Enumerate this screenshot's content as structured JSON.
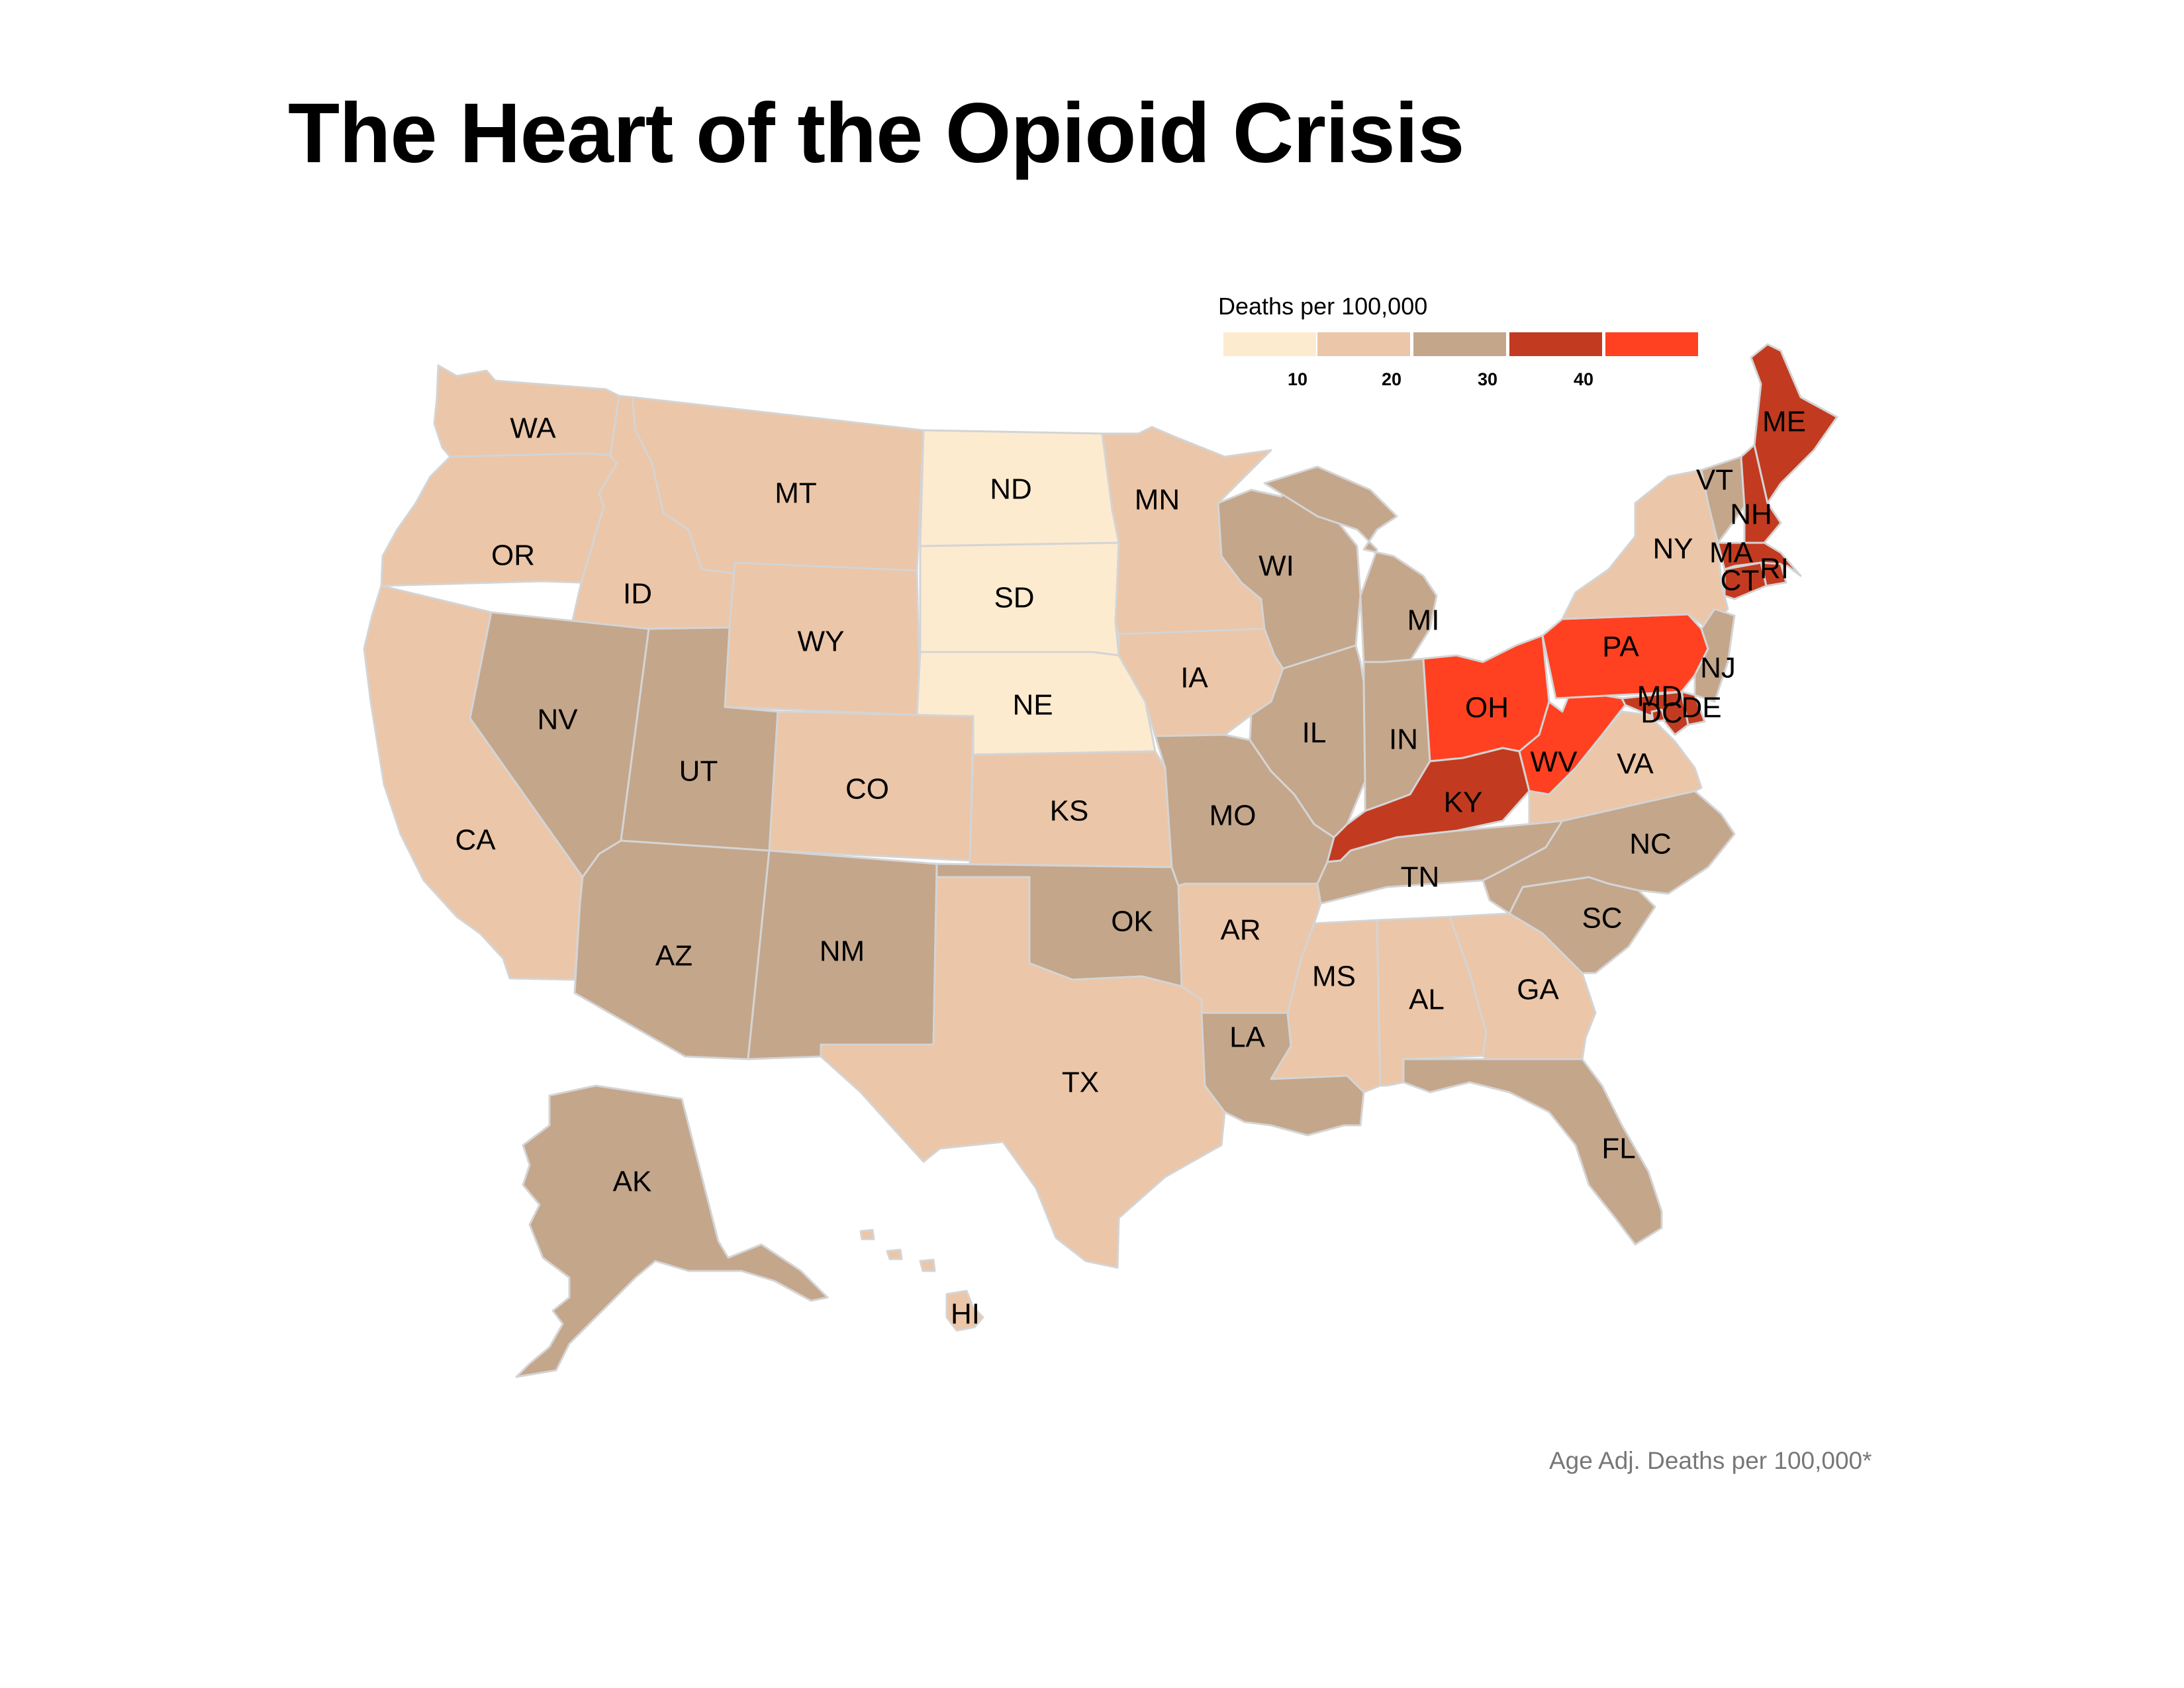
{
  "title": "The Heart of the Opioid Crisis",
  "caption": "Age Adj. Deaths per 100,000*",
  "legend": {
    "title": "Deaths per 100,000",
    "bins": [
      {
        "color": "#fdebd0"
      },
      {
        "color": "#ebc6a8"
      },
      {
        "color": "#c4a68b"
      },
      {
        "color": "#c23b20"
      },
      {
        "color": "#ff4121"
      }
    ],
    "ticks": [
      "10",
      "20",
      "30",
      "40"
    ]
  },
  "chart_data": {
    "type": "choropleth",
    "title": "The Heart of the Opioid Crisis",
    "legend_title": "Deaths per 100,000",
    "bins": [
      {
        "range": [
          0,
          10
        ],
        "color": "#fdebd0"
      },
      {
        "range": [
          10,
          20
        ],
        "color": "#ebc6a8"
      },
      {
        "range": [
          20,
          30
        ],
        "color": "#c4a68b"
      },
      {
        "range": [
          30,
          40
        ],
        "color": "#c23b20"
      },
      {
        "range": [
          40,
          50
        ],
        "color": "#ff4121"
      }
    ],
    "states": [
      {
        "abbr": "WA",
        "bin": 1
      },
      {
        "abbr": "OR",
        "bin": 1
      },
      {
        "abbr": "CA",
        "bin": 1
      },
      {
        "abbr": "ID",
        "bin": 1
      },
      {
        "abbr": "MT",
        "bin": 1
      },
      {
        "abbr": "WY",
        "bin": 1
      },
      {
        "abbr": "NV",
        "bin": 2
      },
      {
        "abbr": "UT",
        "bin": 2
      },
      {
        "abbr": "CO",
        "bin": 1
      },
      {
        "abbr": "AZ",
        "bin": 2
      },
      {
        "abbr": "NM",
        "bin": 2
      },
      {
        "abbr": "ND",
        "bin": 0
      },
      {
        "abbr": "SD",
        "bin": 0
      },
      {
        "abbr": "NE",
        "bin": 0
      },
      {
        "abbr": "KS",
        "bin": 1
      },
      {
        "abbr": "OK",
        "bin": 2
      },
      {
        "abbr": "TX",
        "bin": 1
      },
      {
        "abbr": "MN",
        "bin": 1
      },
      {
        "abbr": "IA",
        "bin": 1
      },
      {
        "abbr": "MO",
        "bin": 2
      },
      {
        "abbr": "AR",
        "bin": 1
      },
      {
        "abbr": "LA",
        "bin": 2
      },
      {
        "abbr": "WI",
        "bin": 2
      },
      {
        "abbr": "IL",
        "bin": 2
      },
      {
        "abbr": "MI",
        "bin": 2
      },
      {
        "abbr": "IN",
        "bin": 2
      },
      {
        "abbr": "OH",
        "bin": 4
      },
      {
        "abbr": "KY",
        "bin": 3
      },
      {
        "abbr": "TN",
        "bin": 2
      },
      {
        "abbr": "MS",
        "bin": 1
      },
      {
        "abbr": "AL",
        "bin": 1
      },
      {
        "abbr": "GA",
        "bin": 1
      },
      {
        "abbr": "FL",
        "bin": 2
      },
      {
        "abbr": "SC",
        "bin": 2
      },
      {
        "abbr": "NC",
        "bin": 2
      },
      {
        "abbr": "VA",
        "bin": 1
      },
      {
        "abbr": "WV",
        "bin": 4
      },
      {
        "abbr": "PA",
        "bin": 4
      },
      {
        "abbr": "NY",
        "bin": 1
      },
      {
        "abbr": "VT",
        "bin": 2
      },
      {
        "abbr": "NH",
        "bin": 3
      },
      {
        "abbr": "ME",
        "bin": 3
      },
      {
        "abbr": "MA",
        "bin": 3
      },
      {
        "abbr": "RI",
        "bin": 3
      },
      {
        "abbr": "CT",
        "bin": 3
      },
      {
        "abbr": "NJ",
        "bin": 2
      },
      {
        "abbr": "DE",
        "bin": 3
      },
      {
        "abbr": "MD",
        "bin": 3
      },
      {
        "abbr": "DC",
        "bin": 3
      },
      {
        "abbr": "AK",
        "bin": 2
      },
      {
        "abbr": "HI",
        "bin": 1
      }
    ]
  }
}
